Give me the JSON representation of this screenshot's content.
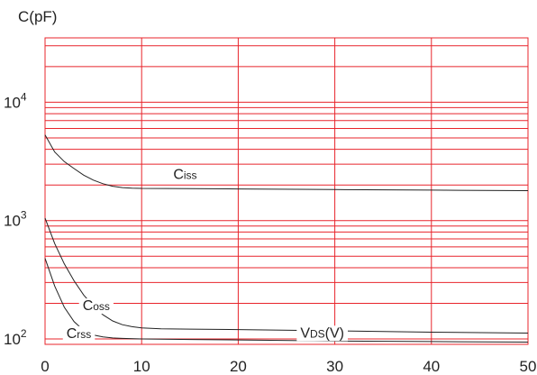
{
  "chart_data": {
    "type": "line",
    "title": "",
    "xlabel": "",
    "ylabel": "C(pF)",
    "y_scale": "log",
    "xlim": [
      0,
      50
    ],
    "ylim": [
      90,
      35000
    ],
    "x_ticks": [
      0,
      10,
      20,
      30,
      40,
      50
    ],
    "x_tick_labels": [
      "0",
      "10",
      "20",
      "30",
      "40",
      "50"
    ],
    "y_tick_labels": [
      {
        "value": 100,
        "base": "10",
        "exp": "2"
      },
      {
        "value": 1000,
        "base": "10",
        "exp": "3"
      },
      {
        "value": 10000,
        "base": "10",
        "exp": "4"
      }
    ],
    "grid": true,
    "grid_color": "#e8242b",
    "line_color": "#222222",
    "series": [
      {
        "name": "Ciss",
        "x": [
          0,
          1,
          2,
          3,
          4,
          5,
          6,
          7,
          8,
          9,
          10,
          15,
          20,
          30,
          40,
          50
        ],
        "values": [
          5300,
          3800,
          3150,
          2750,
          2420,
          2200,
          2050,
          1950,
          1900,
          1880,
          1870,
          1860,
          1850,
          1830,
          1810,
          1790
        ]
      },
      {
        "name": "Coss",
        "x": [
          0,
          1,
          2,
          3,
          4,
          5,
          6,
          7,
          8,
          9,
          10,
          12,
          15,
          20,
          30,
          40,
          50
        ],
        "values": [
          1050,
          640,
          430,
          310,
          235,
          190,
          160,
          142,
          132,
          127,
          124,
          122,
          121,
          120,
          117,
          114,
          112
        ]
      },
      {
        "name": "Crss",
        "x": [
          0,
          1,
          2,
          3,
          4,
          5,
          6,
          7,
          8,
          10,
          15,
          20,
          30,
          40,
          50
        ],
        "values": [
          480,
          280,
          185,
          140,
          118,
          108,
          104,
          102,
          101,
          100,
          99,
          98,
          96,
          95,
          94
        ]
      }
    ],
    "annotations": [
      {
        "name": "Ciss",
        "base": "C",
        "sub": "iss",
        "x": 14.5,
        "y": 2250
      },
      {
        "name": "Coss",
        "base": "C",
        "sub": "oss",
        "x": 5.3,
        "y": 175
      },
      {
        "name": "Crss",
        "base": "C",
        "sub": "rss",
        "x": 3.5,
        "y": 102
      },
      {
        "name": "VDS",
        "pre": "V",
        "sub": "DS",
        "post": "(V)",
        "x": 28.7,
        "y": 103
      }
    ]
  }
}
